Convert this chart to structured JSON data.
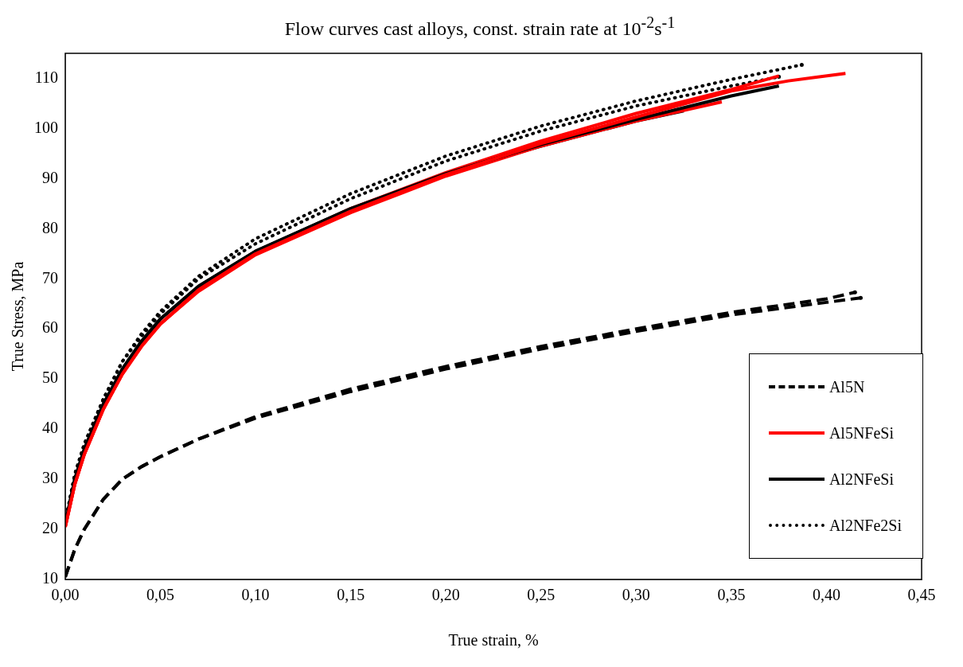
{
  "chart_data": {
    "type": "line",
    "title": "Flow curves cast alloys, const. strain rate at 10$^{-2}$s$^{-1}$",
    "xlabel": "True strain, %",
    "ylabel": "True Stress, MPa",
    "xlim": [
      0,
      0.45
    ],
    "xticks": [
      {
        "value": 0,
        "label": "0,00"
      },
      {
        "value": 0.05,
        "label": "0,05"
      },
      {
        "value": 0.1,
        "label": "0,10"
      },
      {
        "value": 0.15,
        "label": "0,15"
      },
      {
        "value": 0.2,
        "label": "0,20"
      },
      {
        "value": 0.25,
        "label": "0,25"
      },
      {
        "value": 0.3,
        "label": "0,30"
      },
      {
        "value": 0.35,
        "label": "0,35"
      },
      {
        "value": 0.4,
        "label": "0,40"
      },
      {
        "value": 0.45,
        "label": "0,45"
      }
    ],
    "ylim": [
      10,
      115
    ],
    "yticks": [
      10,
      20,
      30,
      40,
      50,
      60,
      70,
      80,
      90,
      100,
      110
    ],
    "grid": false,
    "legend": "bottom right",
    "marker": "none",
    "series": [
      {
        "name": "Al5N",
        "color": "#000000",
        "line_style": "dashed",
        "x": [
          0,
          0.005,
          0.01,
          0.02,
          0.03,
          0.04,
          0.05,
          0.07,
          0.1,
          0.15,
          0.2,
          0.25,
          0.3,
          0.35,
          0.4,
          0.415
        ],
        "values": [
          10.5,
          16,
          20,
          26,
          30,
          32.5,
          34.5,
          38,
          42.5,
          48,
          52.5,
          56.5,
          60,
          63.3,
          66,
          67.3
        ]
      },
      {
        "name": "Al5NFeSi",
        "color": "#ff0000",
        "line_style": "solid",
        "x": [
          0,
          0.005,
          0.01,
          0.02,
          0.03,
          0.04,
          0.05,
          0.07,
          0.1,
          0.15,
          0.2,
          0.25,
          0.3,
          0.35,
          0.38,
          0.41
        ],
        "values": [
          20.5,
          29,
          35,
          44,
          51,
          56.5,
          61,
          67.8,
          75,
          83.5,
          90.8,
          97,
          102.3,
          107.5,
          109.5,
          111
        ]
      },
      {
        "name": "Al2NFeSi",
        "color": "#000000",
        "line_style": "solid",
        "x": [
          0,
          0.005,
          0.01,
          0.02,
          0.03,
          0.04,
          0.05,
          0.07,
          0.1,
          0.15,
          0.2,
          0.25,
          0.3,
          0.35,
          0.375
        ],
        "values": [
          21,
          30,
          36,
          45,
          52,
          57.5,
          62,
          68.5,
          75.5,
          84,
          91,
          96.8,
          101.8,
          106.5,
          108.5
        ]
      },
      {
        "name": "Al2NFe2Si",
        "color": "#000000",
        "line_style": "dotted",
        "x": [
          0,
          0.005,
          0.01,
          0.02,
          0.03,
          0.04,
          0.05,
          0.07,
          0.1,
          0.15,
          0.2,
          0.25,
          0.3,
          0.35,
          0.387
        ],
        "values": [
          21.5,
          31,
          37,
          46,
          53.5,
          59,
          63.5,
          70.5,
          78,
          87,
          94.5,
          100.5,
          105.5,
          109.8,
          112.7
        ]
      },
      {
        "color": "#000000",
        "line_style": "dashed",
        "x": [
          0,
          0.005,
          0.01,
          0.02,
          0.03,
          0.04,
          0.05,
          0.07,
          0.1,
          0.15,
          0.2,
          0.25,
          0.3,
          0.35,
          0.4,
          0.418
        ],
        "values": [
          10.5,
          16,
          20,
          26,
          30,
          32.5,
          34.5,
          38,
          42.2,
          47.5,
          52,
          56,
          59.5,
          62.8,
          65.3,
          66.2
        ]
      },
      {
        "color": "#ff0000",
        "line_style": "solid",
        "x": [
          0,
          0.005,
          0.01,
          0.02,
          0.03,
          0.04,
          0.05,
          0.07,
          0.1,
          0.15,
          0.2,
          0.25,
          0.3,
          0.345
        ],
        "values": [
          20.5,
          29,
          35,
          44,
          51,
          56.5,
          61,
          67.5,
          74.8,
          83.2,
          90.5,
          96.5,
          101.5,
          105.3
        ]
      },
      {
        "color": "#ff0000",
        "line_style": "solid",
        "x": [
          0,
          0.005,
          0.01,
          0.02,
          0.03,
          0.04,
          0.05,
          0.07,
          0.1,
          0.15,
          0.2,
          0.25,
          0.3,
          0.35,
          0.375
        ],
        "values": [
          20.5,
          29,
          35,
          44,
          51,
          56.5,
          61,
          67.8,
          75.2,
          84,
          91.2,
          97.5,
          103,
          107.8,
          110.5
        ]
      },
      {
        "color": "#000000",
        "line_style": "solid",
        "x": [
          0,
          0.005,
          0.01,
          0.02,
          0.03,
          0.04,
          0.05,
          0.07,
          0.1,
          0.15,
          0.2,
          0.25,
          0.3,
          0.325
        ],
        "values": [
          21,
          30,
          36,
          45,
          52,
          57.5,
          62,
          68.5,
          75.5,
          84,
          91,
          96.5,
          101.5,
          103.5
        ]
      },
      {
        "color": "#000000",
        "line_style": "dotted",
        "x": [
          0,
          0.005,
          0.01,
          0.02,
          0.03,
          0.04,
          0.05,
          0.07,
          0.1,
          0.15,
          0.2,
          0.25,
          0.3,
          0.35,
          0.375
        ],
        "values": [
          21.5,
          31,
          37,
          46,
          53.5,
          58.5,
          63,
          70,
          77,
          86,
          93.5,
          99.5,
          104.5,
          108.5,
          110.3
        ]
      }
    ]
  }
}
